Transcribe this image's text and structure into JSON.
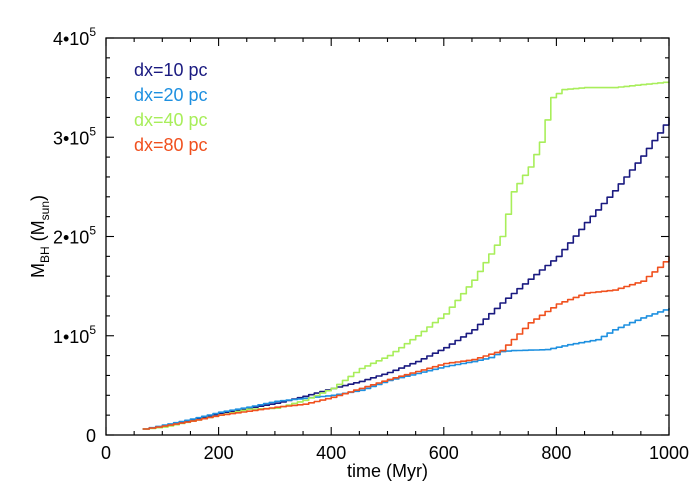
{
  "chart_data": {
    "type": "line",
    "title": "",
    "xlabel": "time (Myr)",
    "ylabel": {
      "main": "M",
      "sub": "BH",
      "unit": "M",
      "unit_sub": "sun"
    },
    "xlim": [
      0,
      1000
    ],
    "ylim": [
      0,
      400000
    ],
    "x_ticks": [
      {
        "value": 0,
        "label": "0"
      },
      {
        "value": 200,
        "label": "200"
      },
      {
        "value": 400,
        "label": "400"
      },
      {
        "value": 600,
        "label": "600"
      },
      {
        "value": 800,
        "label": "800"
      },
      {
        "value": 1000,
        "label": "1000"
      }
    ],
    "y_ticks": [
      {
        "value": 0,
        "mant": "0",
        "exp": ""
      },
      {
        "value": 100000,
        "mant": "1•10",
        "exp": "5"
      },
      {
        "value": 200000,
        "mant": "2•10",
        "exp": "5"
      },
      {
        "value": 300000,
        "mant": "3•10",
        "exp": "5"
      },
      {
        "value": 400000,
        "mant": "4•10",
        "exp": "5"
      }
    ],
    "grid": false,
    "legend_position": "top-left",
    "series": [
      {
        "name": "dx=10 pc",
        "color": "#1a1a80",
        "x": [
          65,
          100,
          150,
          200,
          250,
          300,
          350,
          400,
          450,
          500,
          550,
          600,
          650,
          700,
          750,
          800,
          850,
          900,
          950,
          1000
        ],
        "y": [
          6000,
          9000,
          15000,
          22000,
          27000,
          32000,
          39000,
          47000,
          54000,
          63000,
          74000,
          88000,
          106000,
          133000,
          157000,
          180000,
          214000,
          246000,
          281000,
          320000
        ]
      },
      {
        "name": "dx=20 pc",
        "color": "#1e90e0",
        "x": [
          65,
          100,
          150,
          200,
          250,
          300,
          350,
          400,
          450,
          500,
          550,
          600,
          650,
          680,
          700,
          720,
          780,
          820,
          870,
          900,
          950,
          1000
        ],
        "y": [
          6000,
          10000,
          16000,
          23000,
          28000,
          34000,
          37000,
          40000,
          45000,
          55000,
          62000,
          69000,
          74000,
          78000,
          84000,
          85000,
          86000,
          91000,
          96000,
          106000,
          118000,
          128000
        ]
      },
      {
        "name": "dx=40 pc",
        "color": "#a8ee5a",
        "x": [
          65,
          100,
          150,
          200,
          250,
          300,
          350,
          400,
          450,
          500,
          550,
          600,
          650,
          700,
          720,
          750,
          770,
          790,
          810,
          830,
          850,
          900,
          950,
          1000
        ],
        "y": [
          6000,
          8000,
          14000,
          20000,
          26000,
          27000,
          35000,
          47000,
          67000,
          80000,
          100000,
          122000,
          156000,
          200000,
          245000,
          270000,
          295000,
          340000,
          348000,
          349000,
          350000,
          350000,
          353000,
          356000
        ]
      },
      {
        "name": "dx=80 pc",
        "color": "#f0501e",
        "x": [
          65,
          100,
          150,
          200,
          250,
          300,
          350,
          400,
          450,
          500,
          550,
          600,
          650,
          700,
          750,
          800,
          850,
          900,
          950,
          980,
          1000
        ],
        "y": [
          6000,
          9000,
          14000,
          20000,
          24000,
          28000,
          31000,
          38000,
          47000,
          56000,
          64000,
          72000,
          76000,
          85000,
          113000,
          132000,
          143000,
          146000,
          155000,
          169000,
          180000
        ]
      }
    ]
  }
}
